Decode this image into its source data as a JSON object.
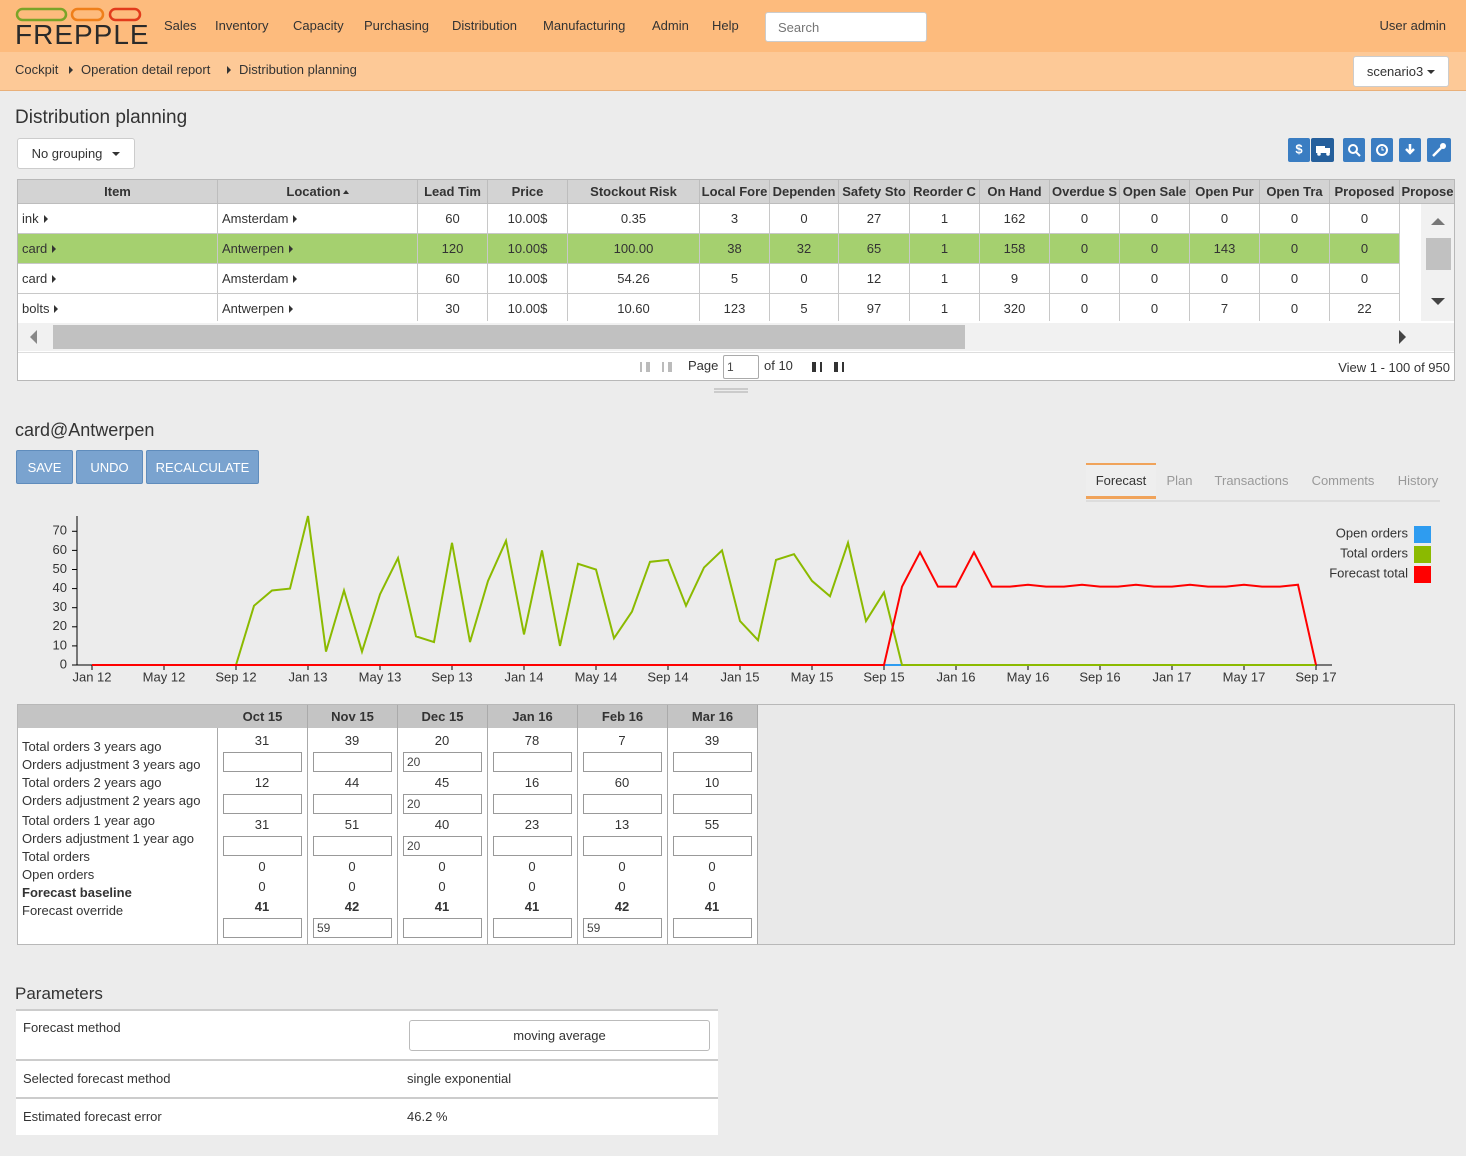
{
  "header": {
    "logo": "FREPPLE",
    "menu": [
      "Sales",
      "Inventory",
      "Capacity",
      "Purchasing",
      "Distribution",
      "Manufacturing",
      "Admin",
      "Help"
    ],
    "search_placeholder": "Search",
    "user": "User admin"
  },
  "breadcrumb": [
    "Cockpit",
    "Operation detail report",
    "Distribution planning"
  ],
  "scenario": "scenario3",
  "page_title": "Distribution planning",
  "grouping": "No grouping",
  "grid": {
    "columns": [
      "Item",
      "Location",
      "Lead Tim",
      "Price",
      "Stockout Risk",
      "Local Fore",
      "Dependen",
      "Safety Sto",
      "Reorder C",
      "On Hand",
      "Overdue S",
      "Open Sale",
      "Open Pur",
      "Open Tra",
      "Proposed",
      "Propose"
    ],
    "rows": [
      [
        "ink",
        "Amsterdam",
        60,
        "10.00$",
        0.35,
        3,
        0,
        27,
        1,
        162,
        0,
        0,
        0,
        0,
        0
      ],
      [
        "card",
        "Antwerpen",
        120,
        "10.00$",
        "100.00",
        38,
        32,
        65,
        1,
        158,
        0,
        0,
        143,
        0,
        0
      ],
      [
        "card",
        "Amsterdam",
        60,
        "10.00$",
        54.26,
        5,
        0,
        12,
        1,
        9,
        0,
        0,
        0,
        0,
        0
      ],
      [
        "bolts",
        "Antwerpen",
        30,
        "10.00$",
        "10.60",
        123,
        5,
        97,
        1,
        320,
        0,
        0,
        7,
        0,
        22
      ]
    ],
    "selected_row": 1
  },
  "pager": {
    "page_label": "Page",
    "page": 1,
    "of": "of 10",
    "view": "View 1 - 100 of 950"
  },
  "detail": {
    "title": "card@Antwerpen",
    "buttons": [
      "SAVE",
      "UNDO",
      "RECALCULATE"
    ],
    "tabs": [
      "Forecast",
      "Plan",
      "Transactions",
      "Comments",
      "History"
    ],
    "active_tab": 0
  },
  "chart_data": {
    "type": "line",
    "legend": "top-right",
    "categories": [
      "Jan 12",
      null,
      null,
      null,
      "May 12",
      null,
      null,
      null,
      "Sep 12",
      null,
      null,
      null,
      "Jan 13",
      null,
      null,
      null,
      "May 13",
      null,
      null,
      null,
      "Sep 13",
      null,
      null,
      null,
      "Jan 14",
      null,
      null,
      null,
      "May 14",
      null,
      null,
      null,
      "Sep 14",
      null,
      null,
      null,
      "Jan 15",
      null,
      null,
      null,
      "May 15",
      null,
      null,
      null,
      "Sep 15",
      null,
      null,
      null,
      "Jan 16",
      null,
      null,
      null,
      "May 16",
      null,
      null,
      null,
      "Sep 16",
      null,
      null,
      null,
      "Jan 17",
      null,
      null,
      null,
      "May 17",
      null,
      null,
      null,
      "Sep 17"
    ],
    "ylim": [
      0,
      78
    ],
    "yticks": [
      0,
      10,
      20,
      30,
      40,
      50,
      60,
      70
    ],
    "series": [
      {
        "name": "Open orders",
        "color": "#2e9cf0",
        "values": [
          0,
          0,
          0,
          0,
          0,
          0,
          0,
          0,
          0,
          0,
          0,
          0,
          0,
          0,
          0,
          0,
          0,
          0,
          0,
          0,
          0,
          0,
          0,
          0,
          0,
          0,
          0,
          0,
          0,
          0,
          0,
          0,
          0,
          0,
          0,
          0,
          0,
          0,
          0,
          0,
          0,
          0,
          0,
          0,
          0,
          0,
          0,
          0,
          0,
          0,
          0,
          0,
          0,
          0,
          0,
          0,
          0,
          0,
          0,
          0,
          0,
          0,
          0,
          0,
          0,
          0,
          0,
          0,
          0
        ]
      },
      {
        "name": "Total orders",
        "color": "#8bba00",
        "values": [
          0,
          0,
          0,
          0,
          0,
          0,
          0,
          0,
          0,
          31,
          39,
          40,
          78,
          7,
          39,
          7,
          37,
          56,
          15,
          12,
          64,
          12,
          44,
          65,
          16,
          60,
          10,
          53,
          50,
          14,
          28,
          54,
          55,
          31,
          51,
          60,
          23,
          13,
          55,
          58,
          44,
          36,
          64,
          23,
          38,
          0,
          0,
          0,
          0,
          0,
          0,
          0,
          0,
          0,
          0,
          0,
          0,
          0,
          0,
          0,
          0,
          0,
          0,
          0,
          0,
          0,
          0,
          0,
          0
        ]
      },
      {
        "name": "Forecast total",
        "color": "#ff0000",
        "values": [
          0,
          0,
          0,
          0,
          0,
          0,
          0,
          0,
          0,
          0,
          0,
          0,
          0,
          0,
          0,
          0,
          0,
          0,
          0,
          0,
          0,
          0,
          0,
          0,
          0,
          0,
          0,
          0,
          0,
          0,
          0,
          0,
          0,
          0,
          0,
          0,
          0,
          0,
          0,
          0,
          0,
          0,
          0,
          0,
          0,
          41,
          59,
          41,
          41,
          59,
          41,
          41,
          42,
          41,
          41,
          42,
          41,
          41,
          42,
          41,
          41,
          42,
          41,
          41,
          42,
          41,
          41,
          42,
          0
        ]
      }
    ]
  },
  "forecast_table": {
    "columns": [
      "Oct 15",
      "Nov 15",
      "Dec 15",
      "Jan 16",
      "Feb 16",
      "Mar 16"
    ],
    "rows": [
      {
        "label": "Total orders 3 years ago",
        "values": [
          31,
          39,
          20,
          78,
          7,
          39
        ]
      },
      {
        "label": "Orders adjustment 3 years ago",
        "editable": true,
        "values": [
          null,
          null,
          20,
          null,
          null,
          null
        ]
      },
      {
        "label": "Total orders 2 years ago",
        "values": [
          12,
          44,
          45,
          16,
          60,
          10
        ]
      },
      {
        "label": "Orders adjustment 2 years ago",
        "editable": true,
        "values": [
          null,
          null,
          20,
          null,
          null,
          null
        ]
      },
      {
        "label": "Total orders 1 year ago",
        "values": [
          31,
          51,
          40,
          23,
          13,
          55
        ]
      },
      {
        "label": "Orders adjustment 1 year ago",
        "editable": true,
        "values": [
          null,
          null,
          20,
          null,
          null,
          null
        ]
      },
      {
        "label": "Total orders",
        "values": [
          0,
          0,
          0,
          0,
          0,
          0
        ]
      },
      {
        "label": "Open orders",
        "values": [
          0,
          0,
          0,
          0,
          0,
          0
        ]
      },
      {
        "label": "Forecast baseline",
        "bold": true,
        "values": [
          41,
          42,
          41,
          41,
          42,
          41
        ]
      },
      {
        "label": "Forecast override",
        "editable": true,
        "values": [
          null,
          59,
          null,
          null,
          59,
          null
        ]
      }
    ]
  },
  "parameters": {
    "title": "Parameters",
    "rows": [
      {
        "label": "Forecast method",
        "value": "moving average",
        "dropdown": true
      },
      {
        "label": "Selected forecast method",
        "value": "single exponential"
      },
      {
        "label": "Estimated forecast error",
        "value": "46.2 %"
      }
    ]
  }
}
